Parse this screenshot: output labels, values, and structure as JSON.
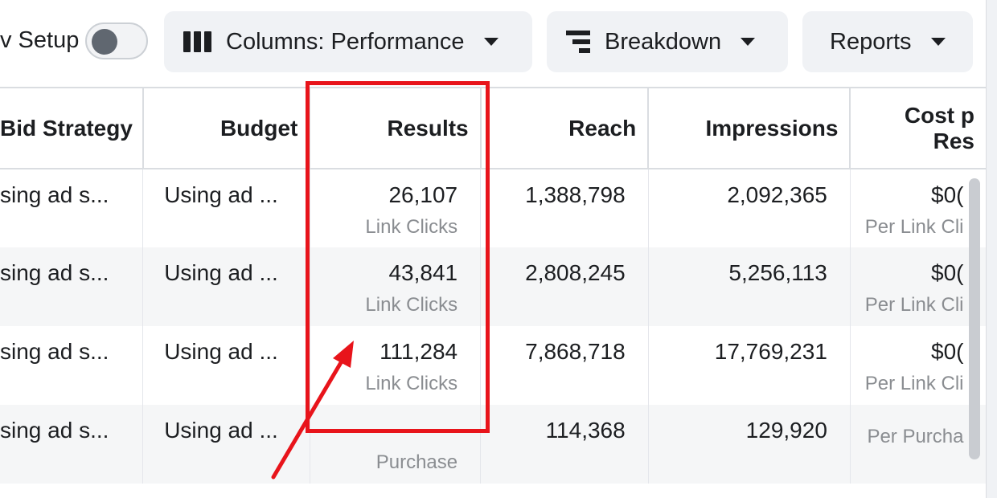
{
  "toolbar": {
    "setup_label": "v Setup",
    "columns_label": "Columns: Performance",
    "breakdown_label": "Breakdown",
    "reports_label": "Reports"
  },
  "table": {
    "headers": {
      "bid_strategy": "Bid Strategy",
      "budget": "Budget",
      "results": "Results",
      "reach": "Reach",
      "impressions": "Impressions",
      "cost_line1": "Cost p",
      "cost_line2": "Res"
    },
    "rows": [
      {
        "bid": "sing ad s...",
        "budget": "Using ad ...",
        "results": "26,107",
        "results_sub": "Link Clicks",
        "reach": "1,388,798",
        "impressions": "2,092,365",
        "cost": "$0(",
        "cost_sub": "Per Link Cli"
      },
      {
        "bid": "sing ad s...",
        "budget": "Using ad ...",
        "results": "43,841",
        "results_sub": "Link Clicks",
        "reach": "2,808,245",
        "impressions": "5,256,113",
        "cost": "$0(",
        "cost_sub": "Per Link Cli"
      },
      {
        "bid": "sing ad s...",
        "budget": "Using ad ...",
        "results": "111,284",
        "results_sub": "Link Clicks",
        "reach": "7,868,718",
        "impressions": "17,769,231",
        "cost": "$0(",
        "cost_sub": "Per Link Cli"
      },
      {
        "bid": "sing ad s...",
        "budget": "Using ad ...",
        "results": "—",
        "results_sub": "Purchase",
        "reach": "114,368",
        "impressions": "129,920",
        "cost": "",
        "cost_sub": "Per Purcha"
      }
    ]
  },
  "colors": {
    "annotation": "#e8141b",
    "toolbar_button_bg": "#f0f2f5"
  }
}
